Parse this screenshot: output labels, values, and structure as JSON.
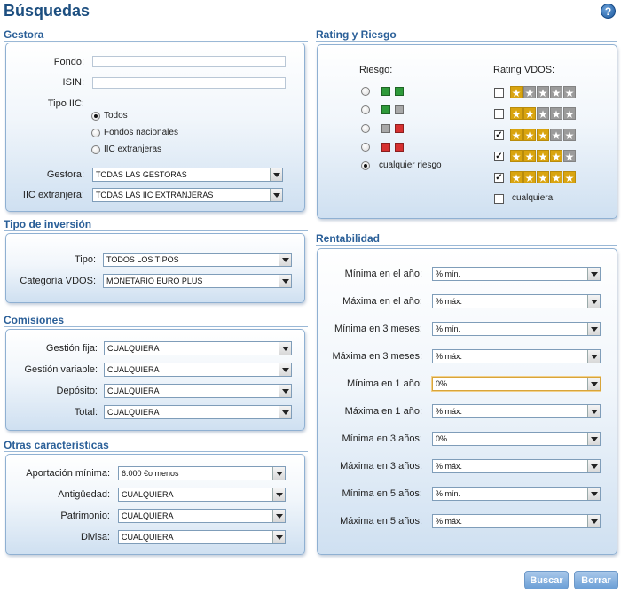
{
  "page": {
    "title": "Búsquedas",
    "help": "?"
  },
  "gestora": {
    "title": "Gestora",
    "fondo_label": "Fondo:",
    "fondo_value": "",
    "isin_label": "ISIN:",
    "isin_value": "",
    "tipo_label": "Tipo IIC:",
    "tipo_options": [
      "Todos",
      "Fondos nacionales",
      "IIC extranjeras"
    ],
    "tipo_selected": "Todos",
    "gestora_label": "Gestora:",
    "gestora_value": "TODAS LAS GESTORAS",
    "iic_label": "IIC extranjera:",
    "iic_value": "TODAS LAS IIC EXTRANJERAS"
  },
  "tipo_inversion": {
    "title": "Tipo de inversión",
    "tipo_label": "Tipo:",
    "tipo_value": "TODOS LOS TIPOS",
    "categoria_label": "Categoría VDOS:",
    "categoria_value": "MONETARIO EURO PLUS"
  },
  "comisiones": {
    "title": "Comisiones",
    "rows": [
      {
        "label": "Gestión fija:",
        "value": "CUALQUIERA"
      },
      {
        "label": "Gestión variable:",
        "value": "CUALQUIERA"
      },
      {
        "label": "Depósito:",
        "value": "CUALQUIERA"
      },
      {
        "label": "Total:",
        "value": "CUALQUIERA"
      }
    ]
  },
  "otras": {
    "title": "Otras características",
    "rows": [
      {
        "label": "Aportación mínima:",
        "value": "6.000 €o menos"
      },
      {
        "label": "Antigüedad:",
        "value": "CUALQUIERA"
      },
      {
        "label": "Patrimonio:",
        "value": "CUALQUIERA"
      },
      {
        "label": "Divisa:",
        "value": "CUALQUIERA"
      }
    ]
  },
  "rating": {
    "title": "Rating y Riesgo",
    "riesgo_label": "Riesgo:",
    "rating_label": "Rating VDOS:",
    "riesgo_options": [
      {
        "colors": [
          "#2e9a3a",
          "#2e9a3a"
        ],
        "selected": false
      },
      {
        "colors": [
          "#2e9a3a",
          "#a8a8a8"
        ],
        "selected": false
      },
      {
        "colors": [
          "#a8a8a8",
          "#d63030"
        ],
        "selected": false
      },
      {
        "colors": [
          "#d63030",
          "#d63030"
        ],
        "selected": false
      },
      {
        "label": "cualquier riesgo",
        "selected": true
      }
    ],
    "rating_options": [
      {
        "stars": 1,
        "checked": false
      },
      {
        "stars": 2,
        "checked": false
      },
      {
        "stars": 3,
        "checked": true
      },
      {
        "stars": 4,
        "checked": true
      },
      {
        "stars": 5,
        "checked": true
      },
      {
        "label": "cualquiera",
        "checked": false
      }
    ],
    "colors": {
      "star_on": "#d9a40f",
      "star_off": "#9b9b9b"
    }
  },
  "rentabilidad": {
    "title": "Rentabilidad",
    "rows": [
      {
        "label": "Mínima en el año:",
        "value": "% mín."
      },
      {
        "label": "Máxima en el año:",
        "value": "% máx."
      },
      {
        "label": "Mínima en 3 meses:",
        "value": "% mín."
      },
      {
        "label": "Máxima en 3 meses:",
        "value": "% máx."
      },
      {
        "label": "Mínima en 1 año:",
        "value": "0%"
      },
      {
        "label": "Máxima en 1 año:",
        "value": "% máx."
      },
      {
        "label": "Mínima en 3 años:",
        "value": "0%"
      },
      {
        "label": "Máxima en 3 años:",
        "value": "% máx."
      },
      {
        "label": "Mínima en 5 años:",
        "value": "% mín."
      },
      {
        "label": "Máxima en 5 años:",
        "value": "% máx."
      }
    ]
  },
  "buttons": {
    "buscar": "Buscar",
    "borrar": "Borrar"
  }
}
